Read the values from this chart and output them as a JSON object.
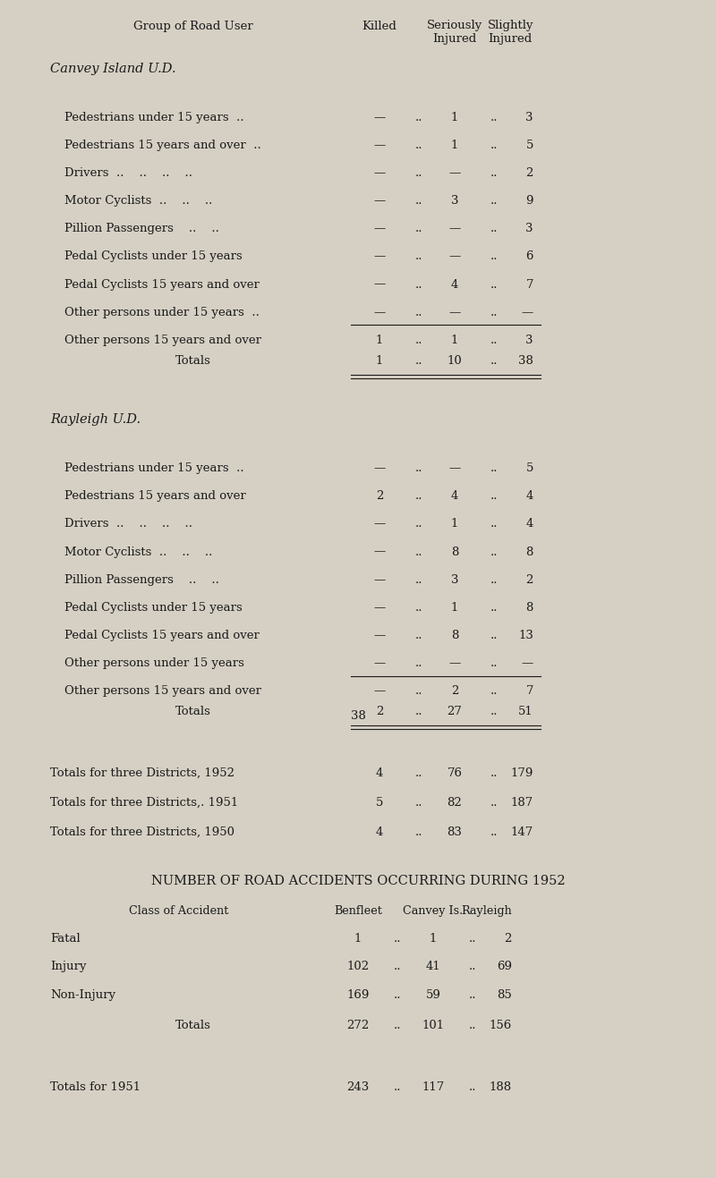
{
  "bg_color": "#d6d0c4",
  "text_color": "#1a1a1a",
  "page_number": "38",
  "header": {
    "col_group": "Group of Road User",
    "col_killed": "Killed",
    "col_seriously": "Seriously\nInjured",
    "col_slightly": "Slightly\nInjured"
  },
  "section1_title": "Canvey Island U.D.",
  "section1_rows": [
    {
      "label": "Pedestrians under 15 years  ..",
      "killed": "—",
      "seriously": "1",
      "slightly": "3"
    },
    {
      "label": "Pedestrians 15 years and over  ..",
      "killed": "—",
      "seriously": "1",
      "slightly": "5"
    },
    {
      "label": "Drivers  ..    ..    ..    ..",
      "killed": "—",
      "seriously": "—",
      "slightly": "2"
    },
    {
      "label": "Motor Cyclists  ..    ..    ..",
      "killed": "—",
      "seriously": "3",
      "slightly": "9"
    },
    {
      "label": "Pillion Passengers    ..    ..",
      "killed": "—",
      "seriously": "—",
      "slightly": "3"
    },
    {
      "label": "Pedal Cyclists under 15 years",
      "killed": "—",
      "seriously": "—",
      "slightly": "6"
    },
    {
      "label": "Pedal Cyclists 15 years and over",
      "killed": "—",
      "seriously": "4",
      "slightly": "7"
    },
    {
      "label": "Other persons under 15 years  ..",
      "killed": "—",
      "seriously": "—",
      "slightly": "—"
    },
    {
      "label": "Other persons 15 years and over",
      "killed": "1",
      "seriously": "1",
      "slightly": "3"
    }
  ],
  "section1_totals": {
    "label": "Totals",
    "killed": "1",
    "seriously": "10",
    "slightly": "38"
  },
  "section2_title": "Rayleigh U.D.",
  "section2_rows": [
    {
      "label": "Pedestrians under 15 years  ..",
      "killed": "—",
      "seriously": "—",
      "slightly": "5"
    },
    {
      "label": "Pedestrians 15 years and over",
      "killed": "2",
      "seriously": "4",
      "slightly": "4"
    },
    {
      "label": "Drivers  ..    ..    ..    ..",
      "killed": "—",
      "seriously": "1",
      "slightly": "4"
    },
    {
      "label": "Motor Cyclists  ..    ..    ..",
      "killed": "—",
      "seriously": "8",
      "slightly": "8"
    },
    {
      "label": "Pillion Passengers    ..    ..",
      "killed": "—",
      "seriously": "3",
      "slightly": "2"
    },
    {
      "label": "Pedal Cyclists under 15 years",
      "killed": "—",
      "seriously": "1",
      "slightly": "8"
    },
    {
      "label": "Pedal Cyclists 15 years and over",
      "killed": "—",
      "seriously": "8",
      "slightly": "13"
    },
    {
      "label": "Other persons under 15 years",
      "killed": "—",
      "seriously": "—",
      "slightly": "—"
    },
    {
      "label": "Other persons 15 years and over",
      "killed": "—",
      "seriously": "2",
      "slightly": "7"
    }
  ],
  "section2_totals": {
    "label": "Totals",
    "killed": "2",
    "seriously": "27",
    "slightly": "51"
  },
  "district_totals": [
    {
      "label": "Totals for three Districts, 1952",
      "killed": "4",
      "seriously": "76",
      "slightly": "179"
    },
    {
      "label": "Totals for three Districts,. 1951",
      "killed": "5",
      "seriously": "82",
      "slightly": "187"
    },
    {
      "label": "Totals for three Districts, 1950",
      "killed": "4",
      "seriously": "83",
      "slightly": "147"
    }
  ],
  "accidents_title": "NUMBER OF ROAD ACCIDENTS OCCURRING DURING 1952",
  "accidents_header": {
    "col_class": "Class of Accident",
    "col_benfleet": "Benfleet",
    "col_canvey": "Canvey Is.",
    "col_rayleigh": "Rayleigh"
  },
  "accidents_rows": [
    {
      "label": "Fatal",
      "benfleet": "1",
      "canvey": "1",
      "rayleigh": "2"
    },
    {
      "label": "Injury",
      "benfleet": "102",
      "canvey": "41",
      "rayleigh": "69"
    },
    {
      "label": "Non-Injury",
      "benfleet": "169",
      "canvey": "59",
      "rayleigh": "85"
    }
  ],
  "accidents_totals": {
    "label": "Totals",
    "benfleet": "272",
    "canvey": "101",
    "rayleigh": "156"
  },
  "accidents_1951": {
    "label": "Totals for 1951",
    "benfleet": "243",
    "canvey": "117",
    "rayleigh": "188"
  }
}
